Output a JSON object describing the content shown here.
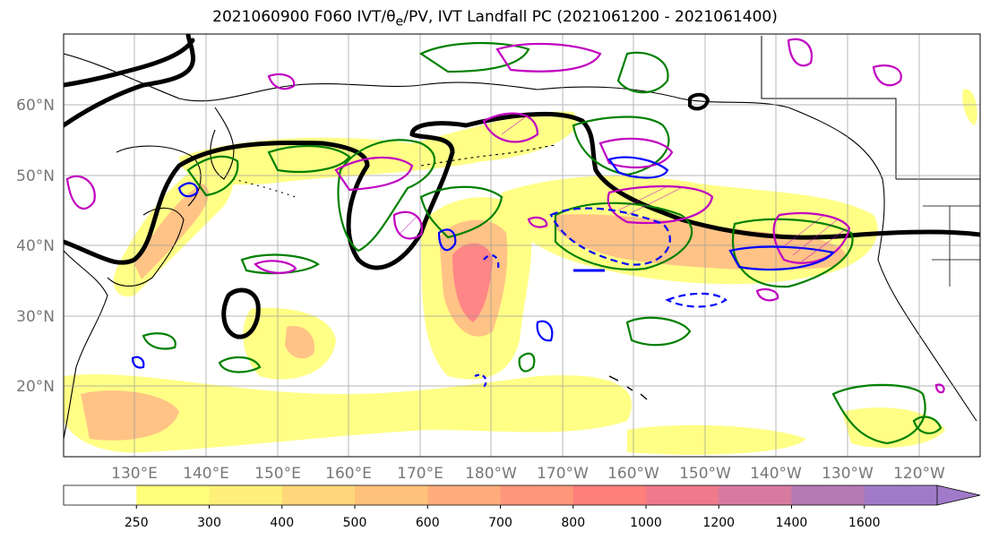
{
  "title_html": "2021060900 F060 IVT/θ<sub>e</sub>/PV, IVT Landfall PC (2021061200 - 2021061400)",
  "lat_labels": [
    "60°N",
    "50°N",
    "40°N",
    "30°N",
    "20°N"
  ],
  "lon_labels": [
    "130°E",
    "140°E",
    "150°E",
    "160°E",
    "170°E",
    "180°W",
    "170°W",
    "160°W",
    "150°W",
    "140°W",
    "130°W",
    "120°W"
  ],
  "colorbar": {
    "levels": [
      "250",
      "300",
      "400",
      "500",
      "600",
      "700",
      "800",
      "1000",
      "1200",
      "1400",
      "1600"
    ],
    "colors": [
      "#ffffff",
      "#ffff7a",
      "#fff07a",
      "#ffd67a",
      "#ffc27a",
      "#ffad7a",
      "#ff967a",
      "#ff7f7a",
      "#ee7a8c",
      "#d67aa0",
      "#b47ab4",
      "#a07ac8"
    ]
  },
  "contour_colors": {
    "ivt_fill_low": "#ffff80",
    "ivt_fill_mid": "#ffc080",
    "ivt_fill_high": "#ff8080",
    "theta_e": "#000000",
    "pv_positive": "#008000",
    "pv_magenta": "#c000c0",
    "pv_negative": "#0000ff"
  }
}
